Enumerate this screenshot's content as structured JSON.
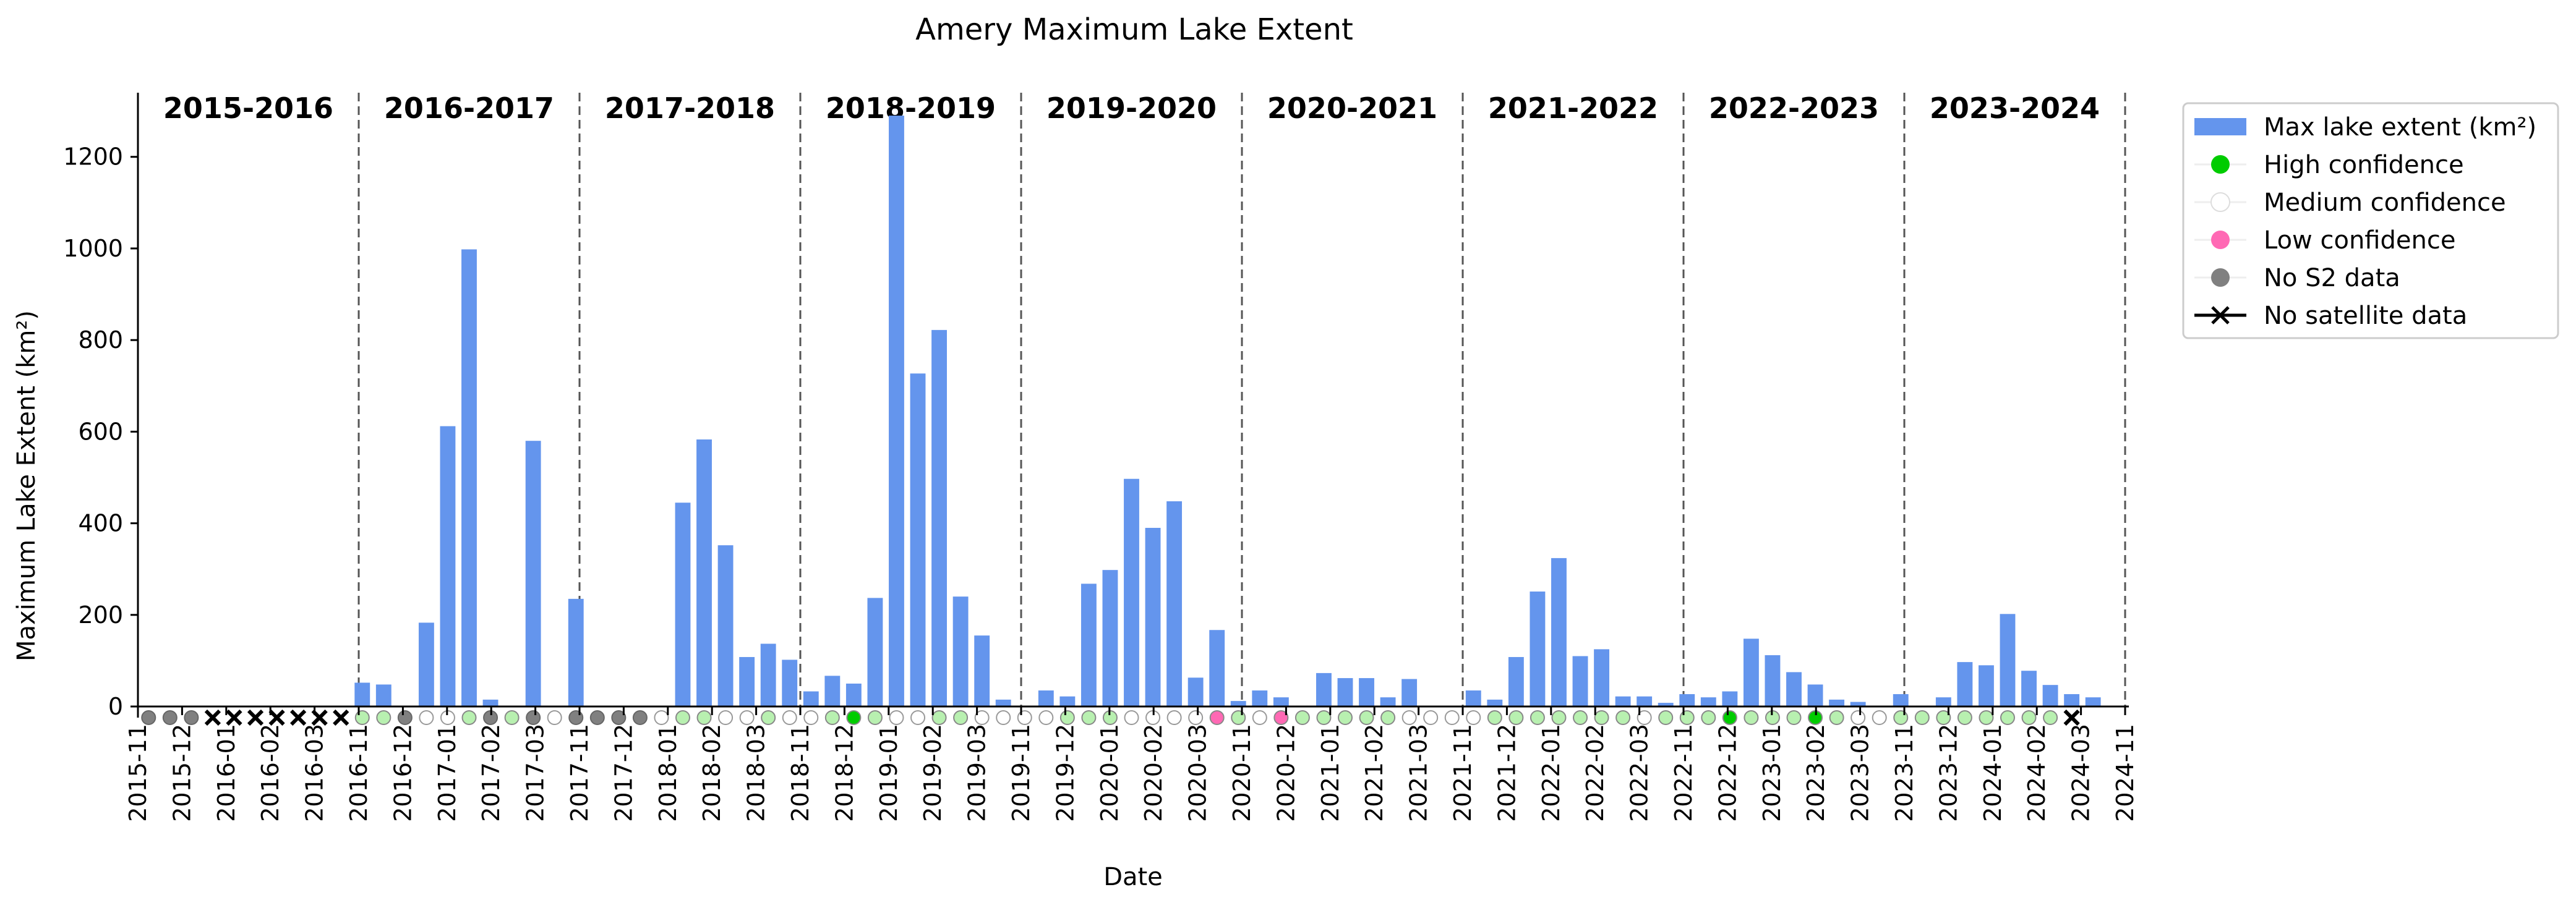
{
  "chart_data": {
    "type": "bar",
    "title": "Amery Maximum Lake Extent",
    "xlabel": "Date",
    "ylabel": "Maximum Lake Extent (km²)",
    "ylim": [
      0,
      1340
    ],
    "yticks": [
      0,
      200,
      400,
      600,
      800,
      1000,
      1200
    ],
    "grid": false,
    "legend_placement": "outside-top-right",
    "seasons": [
      "2015-2016",
      "2016-2017",
      "2017-2018",
      "2018-2019",
      "2019-2020",
      "2020-2021",
      "2021-2022",
      "2022-2023",
      "2023-2024"
    ],
    "months": [
      "11",
      "12",
      "01",
      "02",
      "03"
    ],
    "tick_labels": [
      "2015-11",
      "2015-12",
      "2016-01",
      "2016-02",
      "2016-03",
      "2016-11",
      "2016-12",
      "2017-01",
      "2017-02",
      "2017-03",
      "2017-11",
      "2017-12",
      "2018-01",
      "2018-02",
      "2018-03",
      "2018-11",
      "2018-12",
      "2019-01",
      "2019-02",
      "2019-03",
      "2019-11",
      "2019-12",
      "2020-01",
      "2020-02",
      "2020-03",
      "2020-11",
      "2020-12",
      "2021-01",
      "2021-02",
      "2021-03",
      "2021-11",
      "2021-12",
      "2022-01",
      "2022-02",
      "2022-03",
      "2022-11",
      "2022-12",
      "2023-01",
      "2023-02",
      "2023-03",
      "2023-11",
      "2023-12",
      "2024-01",
      "2024-02",
      "2024-03",
      "2024-11"
    ],
    "series": [
      {
        "name": "Max lake extent (km²)",
        "color": "#6495ed",
        "values": [
          0,
          0,
          0,
          0,
          0,
          0,
          0,
          0,
          0,
          0,
          52,
          48,
          0,
          183,
          612,
          998,
          15,
          0,
          580,
          0,
          235,
          0,
          0,
          0,
          0,
          445,
          583,
          352,
          108,
          137,
          102,
          33,
          67,
          50,
          237,
          1290,
          727,
          822,
          240,
          155,
          15,
          0,
          35,
          22,
          268,
          298,
          497,
          390,
          448,
          63,
          167,
          12,
          35,
          20,
          0,
          73,
          62,
          62,
          20,
          60,
          0,
          0,
          35,
          15,
          108,
          251,
          324,
          110,
          125,
          22,
          22,
          8,
          27,
          20,
          33,
          148,
          112,
          75,
          48,
          15,
          10,
          0,
          27,
          0,
          20,
          97,
          90,
          202,
          78,
          47,
          27,
          20,
          0
        ]
      }
    ],
    "confidence": [
      "nos2",
      "nos2",
      "nos2",
      "nosat",
      "nosat",
      "nosat",
      "nosat",
      "nosat",
      "nosat",
      "nosat",
      "high",
      "high",
      "nos2",
      "med",
      "med",
      "high",
      "nos2",
      "high",
      "nos2",
      "med",
      "nos2",
      "nos2",
      "nos2",
      "nos2",
      "med",
      "high",
      "high",
      "med",
      "med",
      "high",
      "med",
      "med",
      "high",
      "high",
      "high",
      "med",
      "med",
      "high",
      "high",
      "med",
      "med",
      "med",
      "med",
      "high",
      "high",
      "high",
      "med",
      "med",
      "med",
      "med",
      "low",
      "high",
      "med",
      "low",
      "high",
      "high",
      "high",
      "high",
      "high",
      "med",
      "med",
      "med",
      "med",
      "high",
      "high",
      "high",
      "high",
      "high",
      "high",
      "high",
      "med",
      "high",
      "high",
      "high",
      "high",
      "high",
      "high",
      "high",
      "high",
      "high",
      "med",
      "med",
      "high",
      "high",
      "high",
      "high",
      "high",
      "high",
      "high",
      "high",
      "nosat"
    ],
    "confidence_note_colors": {
      "high": "#00cc00",
      "high_light": "#b8f0b0",
      "medium": "#ffffff",
      "low": "#ff69b4",
      "nos2": "#808080"
    },
    "legend": [
      {
        "key": "bar",
        "label": "Max lake extent (km²)",
        "color": "#6495ed"
      },
      {
        "key": "high",
        "label": "High confidence",
        "color": "#00cc00"
      },
      {
        "key": "medium",
        "label": "Medium confidence",
        "color": "#ffffff"
      },
      {
        "key": "low",
        "label": "Low confidence",
        "color": "#ff69b4"
      },
      {
        "key": "nos2",
        "label": "No S2 data",
        "color": "#808080"
      },
      {
        "key": "nosat",
        "label": "No satellite data",
        "color": "#000000"
      }
    ]
  }
}
